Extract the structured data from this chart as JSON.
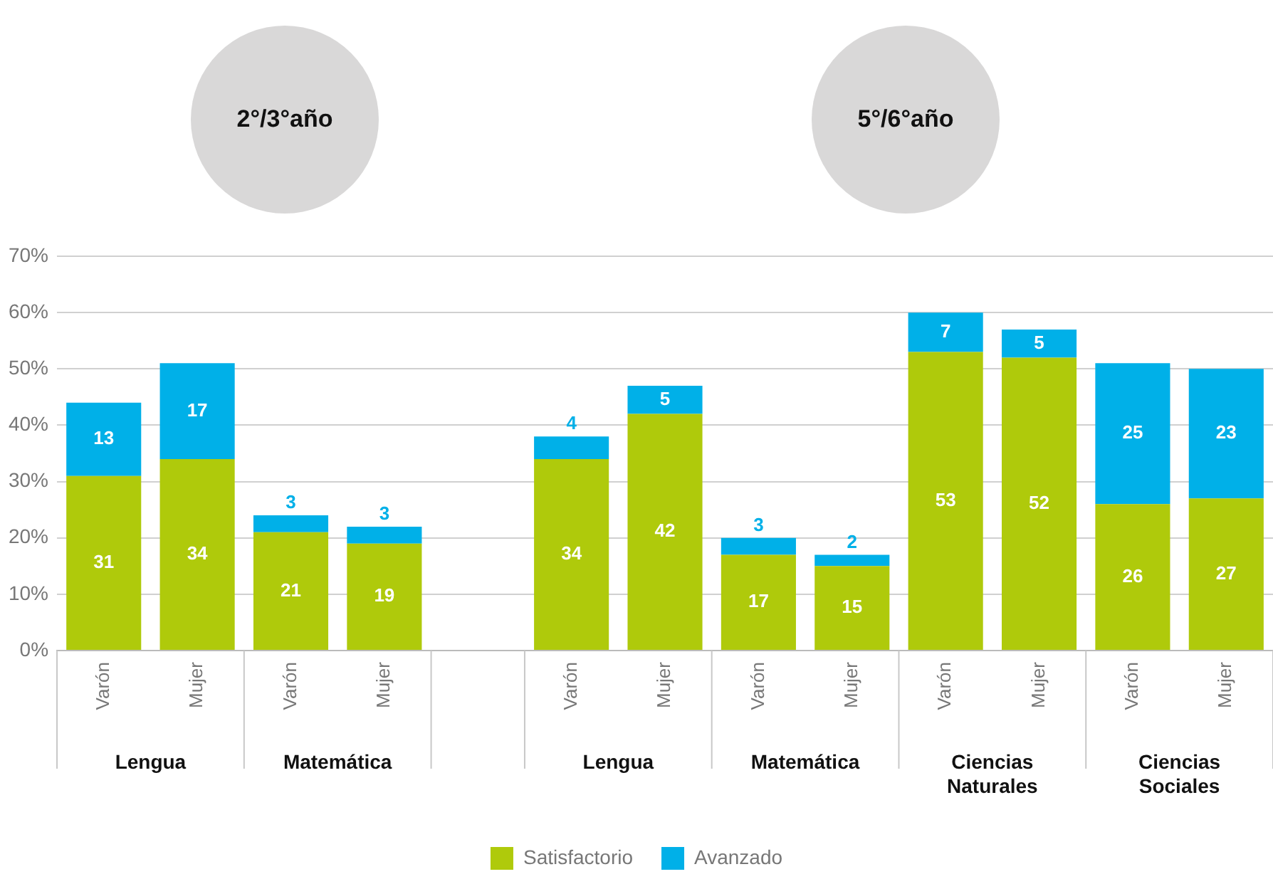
{
  "chart_data": {
    "type": "bar",
    "stacked": true,
    "categories": [
      "Varón",
      "Mujer",
      "Varón",
      "Mujer",
      null,
      "Varón",
      "Mujer",
      "Varón",
      "Mujer",
      "Varón",
      "Mujer",
      "Varón",
      "Mujer"
    ],
    "series": [
      {
        "name": "Satisfactorio",
        "color": "#afca0b",
        "values": [
          31,
          34,
          21,
          19,
          null,
          34,
          42,
          17,
          15,
          53,
          52,
          26,
          27
        ]
      },
      {
        "name": "Avanzado",
        "color": "#00b0e8",
        "values": [
          13,
          17,
          3,
          3,
          null,
          4,
          5,
          3,
          2,
          7,
          5,
          25,
          23
        ]
      }
    ],
    "ylim": [
      0,
      70
    ],
    "yticks": [
      {
        "value": 0,
        "label": "0%"
      },
      {
        "value": 10,
        "label": "10%"
      },
      {
        "value": 20,
        "label": "20%"
      },
      {
        "value": 30,
        "label": "30%"
      },
      {
        "value": 40,
        "label": "40%"
      },
      {
        "value": 50,
        "label": "50%"
      },
      {
        "value": 60,
        "label": "60%"
      },
      {
        "value": 70,
        "label": "70%"
      }
    ],
    "grid": "y",
    "legend": "bottom",
    "data_labels": true,
    "annotations": [
      "2°/3°año",
      "5°/6°año",
      "Lengua",
      "Matemática",
      "Lengua",
      "Matemática",
      "Ciencias Naturales",
      "Ciencias Sociales"
    ]
  }
}
